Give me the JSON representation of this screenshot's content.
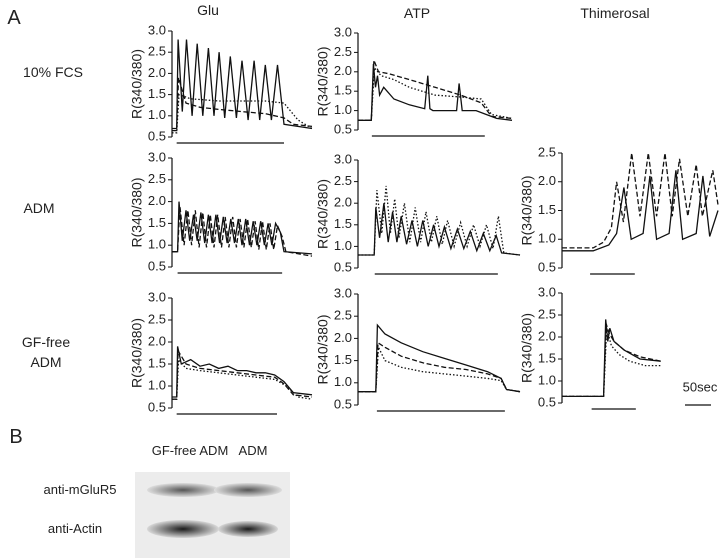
{
  "panel_labels": [
    "A",
    "B"
  ],
  "columns": [
    "Glu",
    "ATP",
    "Thimerosal"
  ],
  "rows": [
    "10% FCS",
    "ADM",
    "GF-free ADM"
  ],
  "chart_data": [
    {
      "type": "line",
      "ylabel": "R(340/380)",
      "xlim": [
        0,
        300
      ],
      "ylim": [
        0.5,
        3.0
      ],
      "yticks": [
        0.5,
        {
          "value": 1,
          "label": "1.0"
        },
        1.5,
        {
          "value": 2,
          "label": "2.0"
        },
        2.5,
        {
          "value": 3,
          "label": "3.0"
        }
      ],
      "stimulus": [
        10,
        240
      ],
      "color": "#111",
      "series": [
        {
          "style": "solid",
          "x": [
            0,
            10,
            13,
            22,
            31,
            43,
            54,
            66,
            78,
            90,
            101,
            113,
            125,
            138,
            150,
            163,
            176,
            188,
            200,
            213,
            226,
            240,
            300
          ],
          "values": [
            0.7,
            0.7,
            2.8,
            1.1,
            2.8,
            1.0,
            2.7,
            1.0,
            2.6,
            1.0,
            2.5,
            0.95,
            2.4,
            0.95,
            2.3,
            0.9,
            2.3,
            0.9,
            2.2,
            0.9,
            2.2,
            0.8,
            0.7
          ]
        },
        {
          "style": "dashed",
          "x": [
            0,
            10,
            14,
            30,
            60,
            100,
            150,
            200,
            240,
            260,
            300
          ],
          "values": [
            0.65,
            0.65,
            1.9,
            1.3,
            1.2,
            1.15,
            1.1,
            1.05,
            0.95,
            0.8,
            0.75
          ]
        },
        {
          "style": "dotted",
          "x": [
            0,
            10,
            15,
            40,
            100,
            150,
            200,
            240,
            270,
            300
          ],
          "values": [
            0.6,
            0.6,
            1.5,
            1.4,
            1.35,
            1.35,
            1.35,
            1.3,
            0.9,
            0.7
          ]
        }
      ]
    },
    {
      "type": "line",
      "ylabel": "R(340/380)",
      "xlim": [
        0,
        300
      ],
      "ylim": [
        0.5,
        3.0
      ],
      "yticks": [
        0.5,
        {
          "value": 1,
          "label": "1.0"
        },
        1.5,
        {
          "value": 2,
          "label": "2.0"
        },
        2.5,
        {
          "value": 3,
          "label": "3.0"
        }
      ],
      "stimulus": [
        27,
        247
      ],
      "color": "#111",
      "series": [
        {
          "style": "solid",
          "x": [
            0,
            26,
            30,
            34,
            38,
            42,
            50,
            70,
            100,
            130,
            136,
            140,
            146,
            170,
            192,
            197,
            203,
            230,
            250,
            270,
            300
          ],
          "values": [
            0.75,
            0.75,
            2.2,
            1.6,
            1.9,
            1.4,
            1.6,
            1.3,
            1.15,
            1.05,
            1.9,
            1.05,
            1.0,
            1.0,
            1.0,
            1.7,
            1.0,
            1.0,
            0.9,
            0.8,
            0.75
          ]
        },
        {
          "style": "dashed",
          "x": [
            0,
            26,
            31,
            40,
            60,
            100,
            150,
            200,
            240,
            260,
            300
          ],
          "values": [
            0.75,
            0.75,
            2.3,
            2.0,
            1.95,
            1.8,
            1.6,
            1.4,
            1.2,
            0.85,
            0.8
          ]
        },
        {
          "style": "dotted",
          "x": [
            0,
            26,
            32,
            45,
            70,
            100,
            150,
            200,
            240,
            260,
            300
          ],
          "values": [
            0.75,
            0.75,
            2.1,
            1.9,
            1.8,
            1.6,
            1.4,
            1.35,
            1.3,
            0.9,
            0.8
          ]
        }
      ]
    },
    {
      "type": "line",
      "ylabel": "R(340/380)",
      "xlim": [
        0,
        300
      ],
      "ylim": [
        0.5,
        3.0
      ],
      "yticks": [
        0.5,
        {
          "value": 1,
          "label": "1.0"
        },
        1.5,
        {
          "value": 2,
          "label": "2.0"
        },
        2.5,
        {
          "value": 3,
          "label": "3.0"
        }
      ],
      "stimulus": [
        12,
        236
      ],
      "color": "#111",
      "series": [
        {
          "style": "solid",
          "x": [
            0,
            12,
            15,
            22,
            30,
            38,
            46,
            54,
            62,
            70,
            78,
            86,
            94,
            102,
            110,
            118,
            126,
            134,
            142,
            150,
            158,
            166,
            174,
            182,
            190,
            198,
            206,
            214,
            222,
            232,
            240,
            300
          ],
          "values": [
            0.85,
            0.85,
            2.0,
            1.1,
            1.8,
            1.1,
            1.7,
            1.1,
            1.75,
            1.05,
            1.7,
            1.05,
            1.7,
            1.05,
            1.65,
            1.05,
            1.6,
            1.05,
            1.6,
            1.0,
            1.6,
            1.0,
            1.55,
            1.0,
            1.55,
            1.0,
            1.5,
            1.0,
            1.5,
            1.3,
            0.85,
            0.8
          ]
        },
        {
          "style": "dashed",
          "x": [
            0,
            12,
            17,
            26,
            34,
            42,
            50,
            58,
            66,
            74,
            82,
            90,
            98,
            106,
            114,
            122,
            130,
            138,
            146,
            154,
            162,
            170,
            178,
            186,
            194,
            202,
            210,
            218,
            226,
            236,
            244,
            300
          ],
          "values": [
            0.85,
            0.85,
            1.9,
            1.0,
            1.8,
            1.0,
            1.8,
            0.95,
            1.75,
            0.95,
            1.7,
            0.95,
            1.7,
            0.95,
            1.65,
            0.95,
            1.65,
            0.95,
            1.6,
            0.95,
            1.6,
            0.95,
            1.55,
            0.9,
            1.55,
            0.9,
            1.5,
            0.9,
            1.45,
            1.2,
            0.85,
            0.75
          ]
        }
      ]
    },
    {
      "type": "line",
      "ylabel": "R(340/380)",
      "xlim": [
        0,
        300
      ],
      "ylim": [
        0.5,
        3.0
      ],
      "yticks": [
        0.5,
        {
          "value": 1,
          "label": "1.0"
        },
        1.5,
        {
          "value": 2,
          "label": "2.0"
        },
        2.5,
        {
          "value": 3,
          "label": "3.0"
        }
      ],
      "stimulus": [
        31,
        259
      ],
      "color": "#111",
      "series": [
        {
          "style": "solid",
          "x": [
            0,
            30,
            33,
            40,
            48,
            56,
            64,
            72,
            80,
            90,
            100,
            110,
            120,
            130,
            140,
            150,
            160,
            172,
            184,
            196,
            208,
            220,
            232,
            244,
            256,
            266,
            300
          ],
          "values": [
            0.8,
            0.8,
            1.9,
            1.2,
            2.0,
            1.1,
            1.8,
            1.1,
            1.7,
            1.05,
            1.6,
            1.0,
            1.6,
            1.0,
            1.5,
            1.0,
            1.45,
            0.95,
            1.4,
            0.95,
            1.35,
            0.9,
            1.3,
            0.9,
            1.25,
            0.85,
            0.8
          ]
        },
        {
          "style": "dotted",
          "x": [
            0,
            30,
            35,
            44,
            52,
            60,
            68,
            76,
            86,
            96,
            106,
            116,
            126,
            136,
            146,
            156,
            166,
            178,
            190,
            202,
            214,
            226,
            238,
            250,
            260,
            270,
            300
          ],
          "values": [
            0.8,
            0.8,
            2.3,
            1.3,
            2.4,
            1.3,
            2.1,
            1.2,
            2.0,
            1.1,
            1.9,
            1.1,
            1.8,
            1.1,
            1.7,
            1.05,
            1.6,
            1.0,
            1.55,
            1.0,
            1.5,
            1.0,
            1.5,
            0.95,
            1.7,
            0.85,
            0.8
          ]
        }
      ]
    },
    {
      "type": "line",
      "ylabel": "R(340/380)",
      "xlim": [
        0,
        300
      ],
      "ylim": [
        0.5,
        2.5
      ],
      "yticks": [
        0.5,
        {
          "value": 1,
          "label": "1.0"
        },
        1.5,
        {
          "value": 2,
          "label": "2.0"
        },
        2.5
      ],
      "stimulus": [
        54,
        140
      ],
      "color": "#111",
      "series": [
        {
          "style": "solid",
          "x": [
            0,
            60,
            90,
            105,
            119,
            133,
            156,
            169,
            182,
            206,
            219,
            232,
            258,
            271,
            284,
            300
          ],
          "values": [
            0.8,
            0.8,
            0.9,
            1.1,
            1.9,
            1.0,
            1.1,
            2.1,
            1.0,
            1.1,
            2.2,
            1.0,
            1.1,
            2.1,
            1.05,
            1.5
          ]
        },
        {
          "style": "dashed",
          "x": [
            0,
            60,
            80,
            95,
            105,
            118,
            134,
            150,
            166,
            182,
            198,
            212,
            226,
            242,
            258,
            270,
            290,
            300
          ],
          "values": [
            0.85,
            0.85,
            0.95,
            1.2,
            2.0,
            1.3,
            2.5,
            1.4,
            2.5,
            1.4,
            2.5,
            1.4,
            2.4,
            1.4,
            2.3,
            1.4,
            2.2,
            1.6
          ]
        }
      ]
    },
    {
      "type": "line",
      "ylabel": "R(340/380)",
      "xlim": [
        0,
        300
      ],
      "ylim": [
        0.5,
        3.0
      ],
      "yticks": [
        0.5,
        {
          "value": 1,
          "label": "1.0"
        },
        1.5,
        {
          "value": 2,
          "label": "2.0"
        },
        2.5,
        {
          "value": 3,
          "label": "3.0"
        }
      ],
      "stimulus": [
        10,
        225
      ],
      "color": "#111",
      "series": [
        {
          "style": "solid",
          "x": [
            0,
            10,
            12,
            20,
            40,
            60,
            80,
            100,
            120,
            140,
            160,
            180,
            200,
            220,
            240,
            260,
            300
          ],
          "values": [
            0.75,
            0.75,
            1.9,
            1.5,
            1.6,
            1.45,
            1.5,
            1.4,
            1.45,
            1.35,
            1.35,
            1.3,
            1.3,
            1.25,
            1.1,
            0.85,
            0.8
          ]
        },
        {
          "style": "dashed",
          "x": [
            0,
            10,
            13,
            30,
            60,
            100,
            140,
            180,
            220,
            240,
            260,
            300
          ],
          "values": [
            0.7,
            0.7,
            1.8,
            1.5,
            1.4,
            1.35,
            1.3,
            1.25,
            1.2,
            1.05,
            0.8,
            0.75
          ]
        },
        {
          "style": "dotted",
          "x": [
            0,
            10,
            14,
            30,
            60,
            100,
            140,
            180,
            220,
            245,
            270,
            300
          ],
          "values": [
            0.7,
            0.7,
            1.6,
            1.4,
            1.35,
            1.3,
            1.25,
            1.2,
            1.15,
            1.0,
            0.75,
            0.7
          ]
        }
      ]
    },
    {
      "type": "line",
      "ylabel": "R(340/380)",
      "xlim": [
        0,
        300
      ],
      "ylim": [
        0.5,
        3.0
      ],
      "yticks": [
        0.5,
        {
          "value": 1,
          "label": "1.0"
        },
        1.5,
        {
          "value": 2,
          "label": "2.0"
        },
        2.5,
        {
          "value": 3,
          "label": "3.0"
        }
      ],
      "stimulus": [
        35,
        272
      ],
      "color": "#111",
      "series": [
        {
          "style": "solid",
          "x": [
            0,
            33,
            36,
            50,
            80,
            120,
            160,
            200,
            240,
            265,
            275,
            300
          ],
          "values": [
            0.8,
            0.8,
            2.3,
            2.1,
            1.9,
            1.7,
            1.55,
            1.4,
            1.25,
            1.1,
            0.85,
            0.8
          ]
        },
        {
          "style": "dashed",
          "x": [
            0,
            33,
            37,
            50,
            80,
            120,
            160,
            200,
            240,
            265,
            275,
            300
          ],
          "values": [
            0.8,
            0.8,
            1.9,
            1.8,
            1.6,
            1.45,
            1.35,
            1.3,
            1.2,
            1.1,
            0.85,
            0.8
          ]
        },
        {
          "style": "dotted",
          "x": [
            0,
            33,
            38,
            50,
            80,
            120,
            160,
            200,
            240,
            265,
            275,
            300
          ],
          "values": [
            0.8,
            0.8,
            1.8,
            1.5,
            1.35,
            1.25,
            1.2,
            1.15,
            1.1,
            1.05,
            0.85,
            0.8
          ]
        }
      ]
    },
    {
      "type": "line",
      "ylabel": "R(340/380)",
      "xlim": [
        0,
        300
      ],
      "ylim": [
        0.5,
        3.0
      ],
      "yticks": [
        0.5,
        {
          "value": 1,
          "label": "1.0"
        },
        1.5,
        {
          "value": 2,
          "label": "2.0"
        },
        2.5,
        {
          "value": 3,
          "label": "3.0"
        }
      ],
      "stimulus": [
        57,
        142
      ],
      "color": "#111",
      "series": [
        {
          "style": "solid",
          "x": [
            0,
            80,
            84,
            88,
            92,
            100,
            120,
            150,
            190
          ],
          "values": [
            0.65,
            0.65,
            2.4,
            1.9,
            2.2,
            1.9,
            1.7,
            1.5,
            1.45
          ]
        },
        {
          "style": "dashed",
          "x": [
            0,
            80,
            85,
            90,
            100,
            120,
            150,
            190
          ],
          "values": [
            0.65,
            0.65,
            2.3,
            2.1,
            1.9,
            1.7,
            1.55,
            1.45
          ]
        },
        {
          "style": "dotted",
          "x": [
            0,
            80,
            86,
            95,
            110,
            130,
            160,
            190
          ],
          "values": [
            0.65,
            0.65,
            2.2,
            1.8,
            1.6,
            1.45,
            1.35,
            1.35
          ]
        }
      ]
    }
  ],
  "scale_bar": {
    "label": "50sec",
    "seconds": 50
  },
  "blot": {
    "lanes": [
      "GF-free ADM",
      "ADM"
    ],
    "antibodies": [
      "anti-mGluR5",
      "anti-Actin"
    ]
  }
}
